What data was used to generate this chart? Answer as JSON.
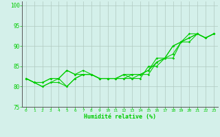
{
  "xlabel": "Humidité relative (%)",
  "xlim": [
    -0.5,
    23.5
  ],
  "ylim": [
    75,
    101
  ],
  "yticks": [
    75,
    80,
    85,
    90,
    95,
    100
  ],
  "xticks": [
    0,
    1,
    2,
    3,
    4,
    5,
    6,
    7,
    8,
    9,
    10,
    11,
    12,
    13,
    14,
    15,
    16,
    17,
    18,
    19,
    20,
    21,
    22,
    23
  ],
  "bg_color": "#d4f0ea",
  "grid_color": "#b0c8c0",
  "line_color": "#00cc00",
  "axis_color": "#555555",
  "lines": [
    [
      82,
      81,
      80,
      81,
      81,
      80,
      82,
      83,
      83,
      82,
      82,
      82,
      83,
      83,
      83,
      83,
      86,
      87,
      87,
      91,
      92,
      93,
      92,
      93
    ],
    [
      82,
      81,
      80,
      81,
      82,
      84,
      83,
      83,
      83,
      82,
      82,
      82,
      82,
      82,
      82,
      85,
      85,
      87,
      88,
      91,
      92,
      93,
      92,
      93
    ],
    [
      82,
      81,
      81,
      82,
      82,
      84,
      83,
      84,
      83,
      82,
      82,
      82,
      82,
      83,
      83,
      84,
      87,
      87,
      90,
      91,
      93,
      93,
      92,
      93
    ],
    [
      82,
      81,
      81,
      82,
      82,
      80,
      82,
      83,
      83,
      82,
      82,
      82,
      83,
      82,
      83,
      84,
      86,
      87,
      90,
      91,
      91,
      93,
      92,
      93
    ]
  ]
}
